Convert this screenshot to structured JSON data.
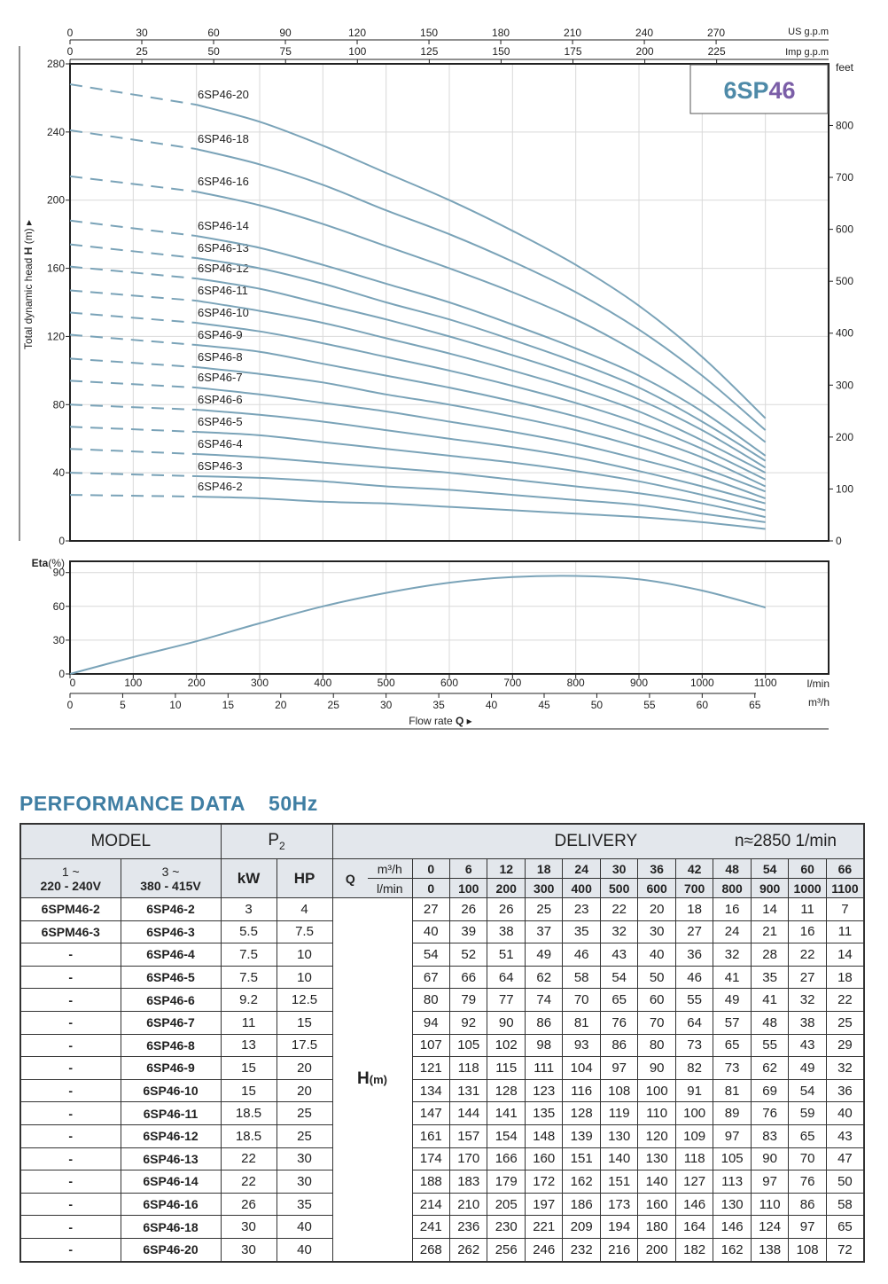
{
  "chart_data": [
    {
      "type": "line",
      "badge": "6SP46",
      "badge_colors": {
        "prefix": "#4e8aa8",
        "suffix": "#7b5ea7"
      },
      "curve_color": "#7aa3b8",
      "ylabel_parts": [
        "Total dynamic head ",
        "H",
        " (m) ▸"
      ],
      "ylim": [
        0,
        280
      ],
      "yticks": [
        "0",
        "40",
        "80",
        "120",
        "160",
        "200",
        "240",
        "280"
      ],
      "right_axis": {
        "label": "feet",
        "ticks": [
          "0",
          "100",
          "200",
          "300",
          "400",
          "500",
          "600",
          "700",
          "800"
        ]
      },
      "top_axis_us": {
        "label": "US g.p.m",
        "ticks": [
          "0",
          "30",
          "60",
          "90",
          "120",
          "150",
          "180",
          "210",
          "240",
          "270"
        ]
      },
      "top_axis_imp": {
        "label": "Imp g.p.m",
        "ticks": [
          "0",
          "25",
          "50",
          "75",
          "100",
          "125",
          "150",
          "175",
          "200",
          "225"
        ]
      },
      "x_lpm": [
        0,
        100,
        200,
        300,
        400,
        500,
        600,
        700,
        800,
        900,
        1000,
        1100
      ],
      "xlim": [
        0,
        1200
      ],
      "series": [
        {
          "name": "6SP46-2",
          "values": [
            27,
            26,
            26,
            25,
            23,
            22,
            20,
            18,
            16,
            14,
            11,
            7
          ]
        },
        {
          "name": "6SP46-3",
          "values": [
            40,
            39,
            38,
            37,
            35,
            32,
            30,
            27,
            24,
            21,
            16,
            11
          ]
        },
        {
          "name": "6SP46-4",
          "values": [
            54,
            52,
            51,
            49,
            46,
            43,
            40,
            36,
            32,
            28,
            22,
            14
          ]
        },
        {
          "name": "6SP46-5",
          "values": [
            67,
            66,
            64,
            62,
            58,
            54,
            50,
            46,
            41,
            35,
            27,
            18
          ]
        },
        {
          "name": "6SP46-6",
          "values": [
            80,
            79,
            77,
            74,
            70,
            65,
            60,
            55,
            49,
            41,
            32,
            22
          ]
        },
        {
          "name": "6SP46-7",
          "values": [
            94,
            92,
            90,
            86,
            81,
            76,
            70,
            64,
            57,
            48,
            38,
            25
          ]
        },
        {
          "name": "6SP46-8",
          "values": [
            107,
            105,
            102,
            98,
            93,
            86,
            80,
            73,
            65,
            55,
            43,
            29
          ]
        },
        {
          "name": "6SP46-9",
          "values": [
            121,
            118,
            115,
            111,
            104,
            97,
            90,
            82,
            73,
            62,
            49,
            32
          ]
        },
        {
          "name": "6SP46-10",
          "values": [
            134,
            131,
            128,
            123,
            116,
            108,
            100,
            91,
            81,
            69,
            54,
            36
          ]
        },
        {
          "name": "6SP46-11",
          "values": [
            147,
            144,
            141,
            135,
            128,
            119,
            110,
            100,
            89,
            76,
            59,
            40
          ]
        },
        {
          "name": "6SP46-12",
          "values": [
            161,
            157,
            154,
            148,
            139,
            130,
            120,
            109,
            97,
            83,
            65,
            43
          ]
        },
        {
          "name": "6SP46-13",
          "values": [
            174,
            170,
            166,
            160,
            151,
            140,
            130,
            118,
            105,
            90,
            70,
            47
          ]
        },
        {
          "name": "6SP46-14",
          "values": [
            188,
            183,
            179,
            172,
            162,
            151,
            140,
            127,
            113,
            97,
            76,
            50
          ]
        },
        {
          "name": "6SP46-16",
          "values": [
            214,
            210,
            205,
            197,
            186,
            173,
            160,
            146,
            130,
            110,
            86,
            58
          ]
        },
        {
          "name": "6SP46-18",
          "values": [
            241,
            236,
            230,
            221,
            209,
            194,
            180,
            164,
            146,
            124,
            97,
            65
          ]
        },
        {
          "name": "6SP46-20",
          "values": [
            268,
            262,
            256,
            246,
            232,
            216,
            200,
            182,
            162,
            138,
            108,
            72
          ]
        }
      ]
    },
    {
      "type": "line",
      "ylabel": "Eta",
      "ylabel_unit": "(%)",
      "ylim": [
        0,
        100
      ],
      "yticks": [
        "0",
        "30",
        "60",
        "90"
      ],
      "x_lpm": [
        0,
        100,
        200,
        300,
        400,
        500,
        600,
        700,
        800,
        900,
        1000,
        1100
      ],
      "series": [
        {
          "values": [
            0,
            15,
            29,
            45,
            60,
            72,
            81,
            86,
            87,
            84,
            74,
            59
          ]
        }
      ],
      "xaxis_lpm": {
        "label": "l/min",
        "ticks": [
          "0",
          "100",
          "200",
          "300",
          "400",
          "500",
          "600",
          "700",
          "800",
          "900",
          "1000",
          "1100"
        ]
      },
      "xaxis_m3h": {
        "label": "m³/h",
        "ticks": [
          "0",
          "5",
          "10",
          "15",
          "20",
          "25",
          "30",
          "35",
          "40",
          "45",
          "50",
          "55",
          "60",
          "65"
        ]
      },
      "xlabel_parts": [
        "Flow  rate  ",
        "Q",
        "  ▸"
      ]
    }
  ],
  "performance": {
    "title": "PERFORMANCE  DATA",
    "freq": "50Hz",
    "header": {
      "model": "MODEL",
      "p2": "P",
      "p2_sub": "2",
      "delivery": "DELIVERY",
      "speed": "n≈2850 1/min",
      "v1": "1 ~",
      "v1b": "220 - 240V",
      "v3": "3 ~",
      "v3b": "380 - 415V",
      "kw": "kW",
      "hp": "HP",
      "q": "Q",
      "unit_m3h": "m³/h",
      "unit_lmin": "l/min",
      "h_label": "H",
      "h_unit": "(m)"
    },
    "q_m3h": [
      "0",
      "6",
      "12",
      "18",
      "24",
      "30",
      "36",
      "42",
      "48",
      "54",
      "60",
      "66"
    ],
    "q_lmin": [
      "0",
      "100",
      "200",
      "300",
      "400",
      "500",
      "600",
      "700",
      "800",
      "900",
      "1000",
      "1100"
    ],
    "rows": [
      {
        "m1": "6SPM46-2",
        "m3": "6SP46-2",
        "kw": "3",
        "hp": "4",
        "h": [
          "27",
          "26",
          "26",
          "25",
          "23",
          "22",
          "20",
          "18",
          "16",
          "14",
          "11",
          "7"
        ]
      },
      {
        "m1": "6SPM46-3",
        "m3": "6SP46-3",
        "kw": "5.5",
        "hp": "7.5",
        "h": [
          "40",
          "39",
          "38",
          "37",
          "35",
          "32",
          "30",
          "27",
          "24",
          "21",
          "16",
          "11"
        ]
      },
      {
        "m1": "-",
        "m3": "6SP46-4",
        "kw": "7.5",
        "hp": "10",
        "h": [
          "54",
          "52",
          "51",
          "49",
          "46",
          "43",
          "40",
          "36",
          "32",
          "28",
          "22",
          "14"
        ]
      },
      {
        "m1": "-",
        "m3": "6SP46-5",
        "kw": "7.5",
        "hp": "10",
        "h": [
          "67",
          "66",
          "64",
          "62",
          "58",
          "54",
          "50",
          "46",
          "41",
          "35",
          "27",
          "18"
        ]
      },
      {
        "m1": "-",
        "m3": "6SP46-6",
        "kw": "9.2",
        "hp": "12.5",
        "h": [
          "80",
          "79",
          "77",
          "74",
          "70",
          "65",
          "60",
          "55",
          "49",
          "41",
          "32",
          "22"
        ]
      },
      {
        "m1": "-",
        "m3": "6SP46-7",
        "kw": "11",
        "hp": "15",
        "h": [
          "94",
          "92",
          "90",
          "86",
          "81",
          "76",
          "70",
          "64",
          "57",
          "48",
          "38",
          "25"
        ]
      },
      {
        "m1": "-",
        "m3": "6SP46-8",
        "kw": "13",
        "hp": "17.5",
        "h": [
          "107",
          "105",
          "102",
          "98",
          "93",
          "86",
          "80",
          "73",
          "65",
          "55",
          "43",
          "29"
        ]
      },
      {
        "m1": "-",
        "m3": "6SP46-9",
        "kw": "15",
        "hp": "20",
        "h": [
          "121",
          "118",
          "115",
          "111",
          "104",
          "97",
          "90",
          "82",
          "73",
          "62",
          "49",
          "32"
        ]
      },
      {
        "m1": "-",
        "m3": "6SP46-10",
        "kw": "15",
        "hp": "20",
        "h": [
          "134",
          "131",
          "128",
          "123",
          "116",
          "108",
          "100",
          "91",
          "81",
          "69",
          "54",
          "36"
        ]
      },
      {
        "m1": "-",
        "m3": "6SP46-11",
        "kw": "18.5",
        "hp": "25",
        "h": [
          "147",
          "144",
          "141",
          "135",
          "128",
          "119",
          "110",
          "100",
          "89",
          "76",
          "59",
          "40"
        ]
      },
      {
        "m1": "-",
        "m3": "6SP46-12",
        "kw": "18.5",
        "hp": "25",
        "h": [
          "161",
          "157",
          "154",
          "148",
          "139",
          "130",
          "120",
          "109",
          "97",
          "83",
          "65",
          "43"
        ]
      },
      {
        "m1": "-",
        "m3": "6SP46-13",
        "kw": "22",
        "hp": "30",
        "h": [
          "174",
          "170",
          "166",
          "160",
          "151",
          "140",
          "130",
          "118",
          "105",
          "90",
          "70",
          "47"
        ]
      },
      {
        "m1": "-",
        "m3": "6SP46-14",
        "kw": "22",
        "hp": "30",
        "h": [
          "188",
          "183",
          "179",
          "172",
          "162",
          "151",
          "140",
          "127",
          "113",
          "97",
          "76",
          "50"
        ]
      },
      {
        "m1": "-",
        "m3": "6SP46-16",
        "kw": "26",
        "hp": "35",
        "h": [
          "214",
          "210",
          "205",
          "197",
          "186",
          "173",
          "160",
          "146",
          "130",
          "110",
          "86",
          "58"
        ]
      },
      {
        "m1": "-",
        "m3": "6SP46-18",
        "kw": "30",
        "hp": "40",
        "h": [
          "241",
          "236",
          "230",
          "221",
          "209",
          "194",
          "180",
          "164",
          "146",
          "124",
          "97",
          "65"
        ]
      },
      {
        "m1": "-",
        "m3": "6SP46-20",
        "kw": "30",
        "hp": "40",
        "h": [
          "268",
          "262",
          "256",
          "246",
          "232",
          "216",
          "200",
          "182",
          "162",
          "138",
          "108",
          "72"
        ]
      }
    ]
  }
}
